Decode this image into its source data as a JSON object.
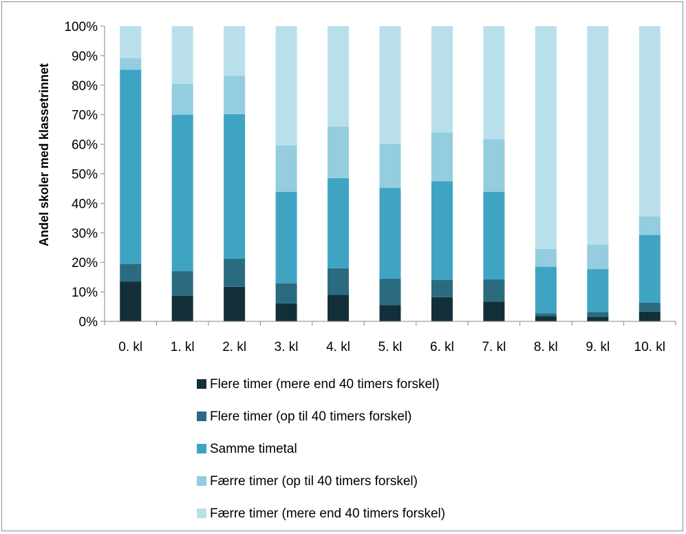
{
  "chart_data": {
    "type": "bar",
    "stacked": true,
    "percent_stacked": true,
    "title": "",
    "xlabel": "",
    "ylabel": "Andel skoler med klassetrinnet",
    "ylim": [
      0,
      100
    ],
    "y_ticks": [
      "0%",
      "10%",
      "20%",
      "30%",
      "40%",
      "50%",
      "60%",
      "70%",
      "80%",
      "90%",
      "100%"
    ],
    "grid": false,
    "legend_position": "bottom",
    "categories": [
      "0. kl",
      "1. kl",
      "2. kl",
      "3. kl",
      "4. kl",
      "5. kl",
      "6. kl",
      "7. kl",
      "8. kl",
      "9. kl",
      "10. kl"
    ],
    "series": [
      {
        "name": "Flere timer (mere end 40 timers forskel)",
        "color": "#13303a",
        "values": [
          13.5,
          8.7,
          11.7,
          6.1,
          9.0,
          5.5,
          8.2,
          6.7,
          1.8,
          1.5,
          3.3
        ]
      },
      {
        "name": "Flere timer (op til 40 timers forskel)",
        "color": "#2b6b80",
        "values": [
          6.0,
          8.3,
          9.5,
          6.8,
          9.0,
          9.0,
          5.8,
          7.5,
          0.9,
          1.7,
          3.0
        ]
      },
      {
        "name": "Samme timetal",
        "color": "#3fa4c2",
        "values": [
          65.7,
          53.0,
          49.0,
          31.0,
          30.5,
          30.7,
          33.5,
          29.7,
          15.8,
          14.5,
          23.0
        ]
      },
      {
        "name": "Færre timer (op til 40 timers forskel)",
        "color": "#94cce0",
        "values": [
          4.0,
          10.5,
          13.0,
          15.7,
          17.5,
          15.0,
          16.5,
          17.8,
          6.0,
          8.3,
          6.3
        ]
      },
      {
        "name": "Færre timer (mere end 40 timers forskel)",
        "color": "#b9e0ea",
        "values": [
          10.8,
          19.5,
          16.8,
          40.4,
          34.0,
          39.8,
          36.0,
          38.3,
          75.5,
          74.0,
          64.4
        ]
      }
    ]
  }
}
